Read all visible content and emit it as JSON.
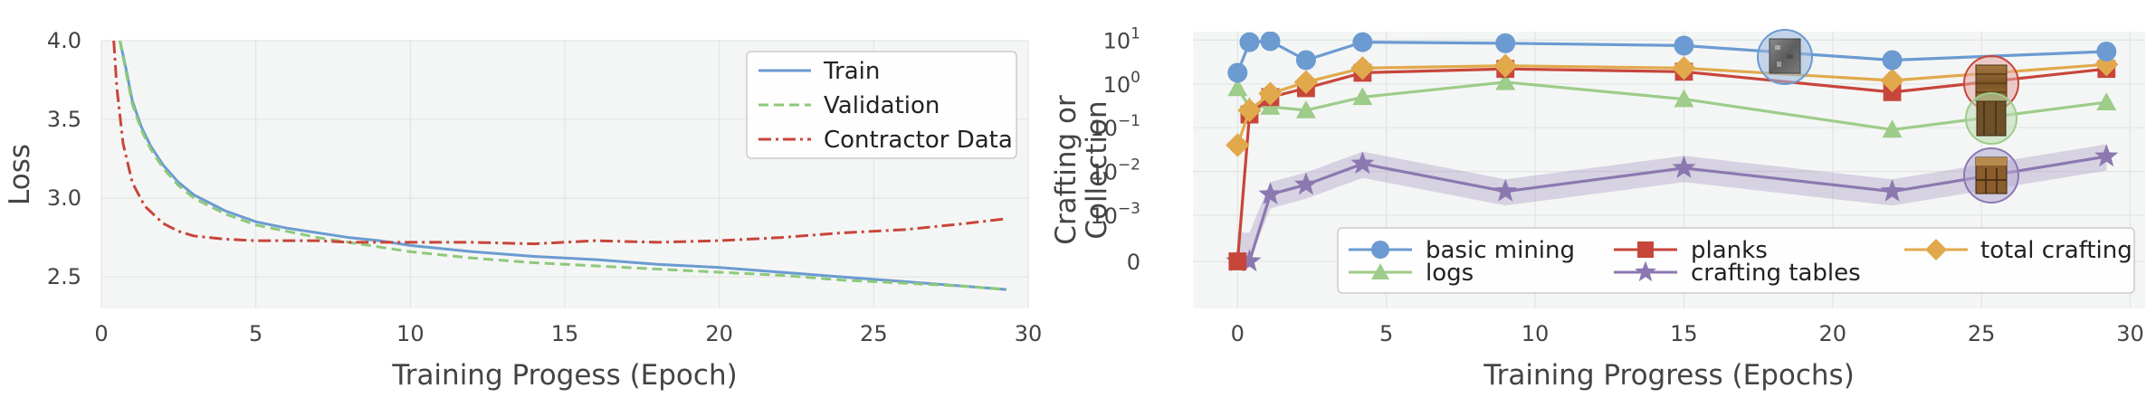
{
  "chart_data": [
    {
      "type": "line",
      "xlabel": "Training Progess (Epoch)",
      "ylabel": "Loss",
      "xlim": [
        0,
        30
      ],
      "ylim": [
        2.3,
        4.0
      ],
      "xticks": [
        "0",
        "5",
        "10",
        "15",
        "20",
        "25",
        "30"
      ],
      "yticks": [
        "2.5",
        "3.0",
        "3.5",
        "4.0"
      ],
      "grid": true,
      "legend_position": "top-right",
      "series": [
        {
          "name": "Train",
          "color": "#6b9bd1",
          "style": "solid",
          "x": [
            0.6,
            0.8,
            1.0,
            1.3,
            1.6,
            2.0,
            2.5,
            3.0,
            4.0,
            5.0,
            6.0,
            7.0,
            8.0,
            9.0,
            10.0,
            12.0,
            14.0,
            16.0,
            18.0,
            20.0,
            22.0,
            24.0,
            26.0,
            28.0,
            29.3
          ],
          "values": [
            4.0,
            3.82,
            3.62,
            3.45,
            3.33,
            3.21,
            3.1,
            3.02,
            2.92,
            2.85,
            2.81,
            2.78,
            2.75,
            2.73,
            2.7,
            2.66,
            2.63,
            2.61,
            2.58,
            2.56,
            2.53,
            2.5,
            2.47,
            2.44,
            2.42
          ]
        },
        {
          "name": "Validation",
          "color": "#8dc97a",
          "style": "dashed",
          "x": [
            0.6,
            0.8,
            1.0,
            1.3,
            1.6,
            2.0,
            2.5,
            3.0,
            4.0,
            5.0,
            6.0,
            7.0,
            8.0,
            9.0,
            10.0,
            12.0,
            14.0,
            16.0,
            18.0,
            20.0,
            22.0,
            24.0,
            26.0,
            28.0,
            29.3
          ],
          "values": [
            4.0,
            3.8,
            3.6,
            3.43,
            3.31,
            3.19,
            3.08,
            3.0,
            2.9,
            2.83,
            2.79,
            2.75,
            2.72,
            2.69,
            2.66,
            2.62,
            2.59,
            2.57,
            2.55,
            2.53,
            2.51,
            2.48,
            2.46,
            2.44,
            2.42
          ]
        },
        {
          "name": "Contractor Data",
          "color": "#c8453a",
          "style": "dashdot",
          "x": [
            0.4,
            0.5,
            0.7,
            1.0,
            1.4,
            2.0,
            2.5,
            3.0,
            4.0,
            5.0,
            6.0,
            7.0,
            8.0,
            9.0,
            10.0,
            12.0,
            14.0,
            16.0,
            18.0,
            20.0,
            22.0,
            24.0,
            26.0,
            28.0,
            29.3
          ],
          "values": [
            4.0,
            3.7,
            3.35,
            3.1,
            2.95,
            2.84,
            2.79,
            2.76,
            2.74,
            2.73,
            2.73,
            2.73,
            2.72,
            2.72,
            2.72,
            2.72,
            2.71,
            2.73,
            2.72,
            2.73,
            2.75,
            2.78,
            2.8,
            2.84,
            2.87
          ]
        }
      ]
    },
    {
      "type": "line",
      "scale": "symlog",
      "xlabel": "Training Progress (Epochs)",
      "ylabel_lines": [
        "Crafting or",
        "Collection"
      ],
      "xlim": [
        -1.5,
        30.5
      ],
      "xticks": [
        "0",
        "5",
        "10",
        "15",
        "20",
        "25",
        "30"
      ],
      "ytick_values": [
        0,
        0.001,
        0.01,
        0.1,
        1,
        10
      ],
      "yticks": [
        {
          "base": "0",
          "exp": ""
        },
        {
          "base": "10",
          "exp": "−3"
        },
        {
          "base": "10",
          "exp": "−2"
        },
        {
          "base": "10",
          "exp": "−1"
        },
        {
          "base": "10",
          "exp": "0"
        },
        {
          "base": "10",
          "exp": "1"
        }
      ],
      "grid": true,
      "legend_position": "bottom",
      "x": [
        0.0,
        0.4,
        1.1,
        2.3,
        4.2,
        9.0,
        15.0,
        22.0,
        29.2
      ],
      "series": [
        {
          "name": "basic mining",
          "color": "#6b9bd1",
          "marker": "circle",
          "values": [
            1.8,
            9.0,
            9.5,
            3.5,
            9.0,
            8.5,
            7.5,
            3.5,
            5.5
          ]
        },
        {
          "name": "planks",
          "color": "#c8453a",
          "marker": "square",
          "values": [
            0,
            0.2,
            0.5,
            0.8,
            1.8,
            2.2,
            1.9,
            0.65,
            2.2
          ]
        },
        {
          "name": "total crafting",
          "color": "#e1a94c",
          "marker": "diamond",
          "values": [
            0.04,
            0.25,
            0.6,
            1.1,
            2.3,
            2.6,
            2.3,
            1.2,
            2.8
          ]
        },
        {
          "name": "logs",
          "color": "#9ecc8a",
          "marker": "triangle",
          "values": [
            0.8,
            0.3,
            0.3,
            0.25,
            0.5,
            1.1,
            0.45,
            0.09,
            0.38
          ]
        },
        {
          "name": "crafting tables",
          "color": "#8c78b0",
          "marker": "star",
          "values": [
            0,
            0,
            0.003,
            0.005,
            0.015,
            0.0035,
            0.012,
            0.0035,
            0.022
          ]
        }
      ]
    }
  ]
}
